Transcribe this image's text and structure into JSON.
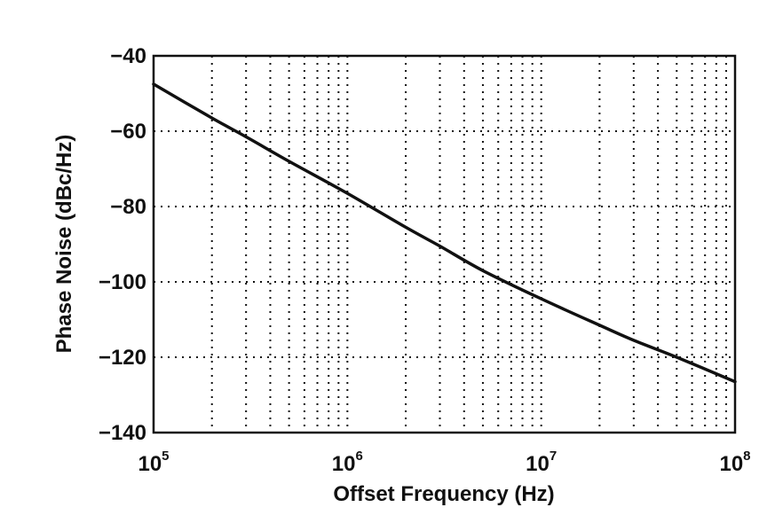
{
  "chart_data": {
    "type": "line",
    "title": "",
    "xlabel": "Offset Frequency (Hz)",
    "ylabel": "Phase Noise (dBc/Hz)",
    "x_scale": "log",
    "xlim": [
      100000,
      100000000
    ],
    "ylim": [
      -140,
      -40
    ],
    "grid": true,
    "x_ticks": [
      {
        "value": 100000,
        "base": "10",
        "exp": "5"
      },
      {
        "value": 1000000,
        "base": "10",
        "exp": "6"
      },
      {
        "value": 10000000,
        "base": "10",
        "exp": "7"
      },
      {
        "value": 100000000,
        "base": "10",
        "exp": "8"
      }
    ],
    "y_ticks": [
      {
        "value": -40,
        "label": "−40"
      },
      {
        "value": -60,
        "label": "−60"
      },
      {
        "value": -80,
        "label": "−80"
      },
      {
        "value": -100,
        "label": "−100"
      },
      {
        "value": -120,
        "label": "−120"
      },
      {
        "value": -140,
        "label": "−140"
      }
    ],
    "series": [
      {
        "x": [
          100000,
          200000,
          300000,
          500000,
          1000000,
          2000000,
          3000000,
          5000000,
          10000000,
          20000000,
          30000000,
          50000000,
          100000000
        ],
        "y": [
          -47.5,
          -56.5,
          -61.5,
          -68,
          -76.5,
          -85.5,
          -90.5,
          -97,
          -104.5,
          -111.5,
          -115.5,
          -120,
          -126.5
        ]
      }
    ]
  }
}
